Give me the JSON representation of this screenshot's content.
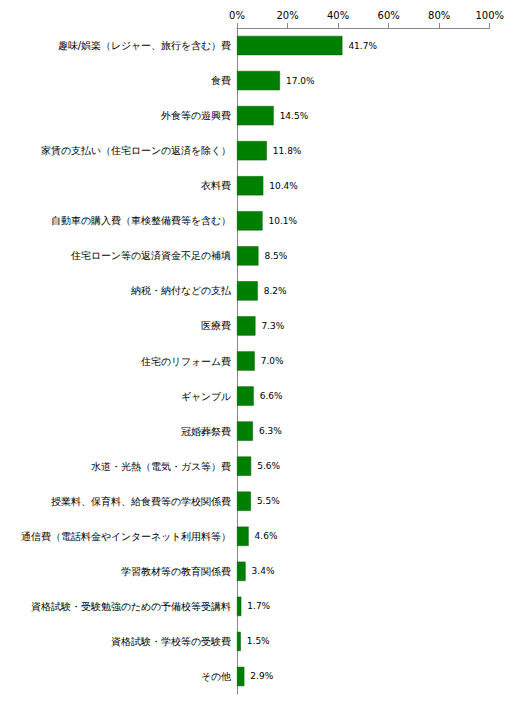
{
  "chart_data": {
    "type": "bar",
    "orientation": "horizontal",
    "categories": [
      "趣味/娯楽（レジャー、旅行を含む）費",
      "食費",
      "外食等の遊興費",
      "家賃の支払い（住宅ローンの返済を除く）",
      "衣料費",
      "自動車の購入費（車検整備費等を含む）",
      "住宅ローン等の返済資金不足の補填",
      "納税・納付などの支払",
      "医療費",
      "住宅のリフォーム費",
      "ギャンブル",
      "冠婚葬祭費",
      "水道・光熱（電気・ガス等）費",
      "授業料、保育料、給食費等の学校関係費",
      "通信費（電話料金やインターネット利用料等）",
      "学習教材等の教育関係費",
      "資格試験・受験勉強のための予備校等受講料",
      "資格試験・学校等の受験費",
      "その他"
    ],
    "values": [
      41.7,
      17.0,
      14.5,
      11.8,
      10.4,
      10.1,
      8.5,
      8.2,
      7.3,
      7.0,
      6.6,
      6.3,
      5.6,
      5.5,
      4.6,
      3.4,
      1.7,
      1.5,
      2.9
    ],
    "value_labels": [
      "41.7%",
      "17.0%",
      "14.5%",
      "11.8%",
      "10.4%",
      "10.1%",
      "8.5%",
      "8.2%",
      "7.3%",
      "7.0%",
      "6.6%",
      "6.3%",
      "5.6%",
      "5.5%",
      "4.6%",
      "3.4%",
      "1.7%",
      "1.5%",
      "2.9%"
    ],
    "data_labels": true,
    "color": "#008000",
    "xlim": [
      0,
      100
    ],
    "xticks": [
      {
        "value": 0,
        "label": "0%"
      },
      {
        "value": 20,
        "label": "20%"
      },
      {
        "value": 40,
        "label": "40%"
      },
      {
        "value": 60,
        "label": "60%"
      },
      {
        "value": 80,
        "label": "80%"
      },
      {
        "value": 100,
        "label": "100%"
      }
    ],
    "grid": false
  }
}
